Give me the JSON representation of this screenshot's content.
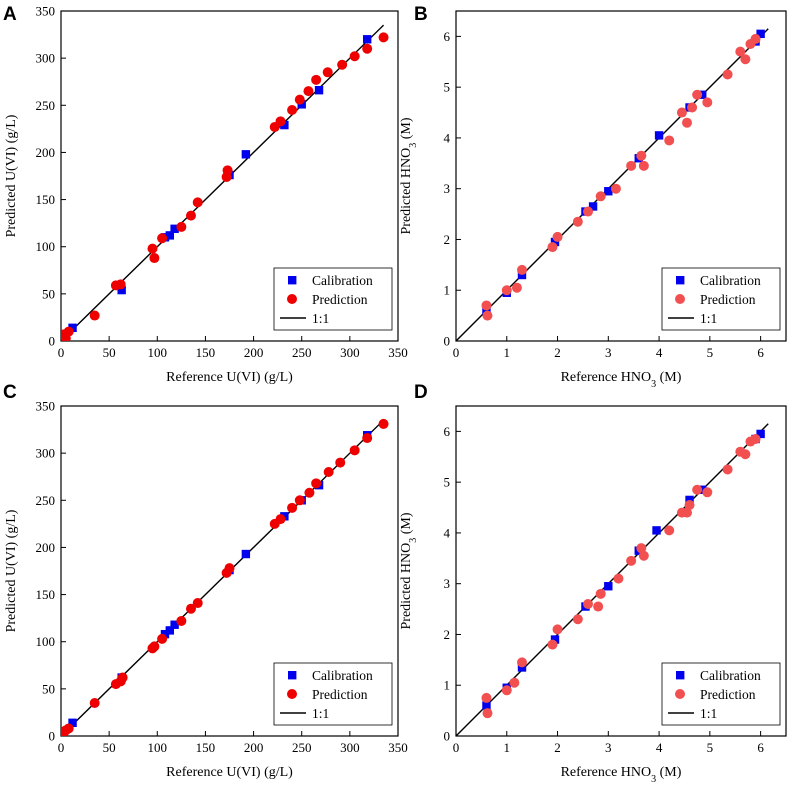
{
  "colors": {
    "calibration": "#0000ee",
    "prediction_AC": "#ee0000",
    "prediction_BD": "#f25050",
    "identity": "#000000"
  },
  "legend": {
    "calibration": "Calibration",
    "prediction": "Prediction",
    "identity": "1:1"
  },
  "chart_data": [
    {
      "panel": "A",
      "type": "scatter",
      "xlabel": "Reference U(VI) (g/L)",
      "ylabel": "Predicted U(VI) (g/L)",
      "xlim": [
        0,
        350
      ],
      "ylim": [
        0,
        350
      ],
      "xticks": [
        0,
        50,
        100,
        150,
        200,
        250,
        300,
        350
      ],
      "yticks": [
        0,
        50,
        100,
        150,
        200,
        250,
        300,
        350
      ],
      "legend_position": "bottom-right",
      "series": [
        {
          "name": "Calibration",
          "marker": "square",
          "x": [
            12,
            63,
            108,
            113,
            118,
            175,
            192,
            232,
            250,
            268,
            318
          ],
          "y": [
            14,
            54,
            110,
            112,
            119,
            176,
            198,
            229,
            251,
            266,
            320
          ]
        },
        {
          "name": "Prediction",
          "marker": "circle",
          "x": [
            3,
            5,
            8,
            35,
            57,
            62,
            95,
            97,
            105,
            125,
            135,
            142,
            172,
            173,
            222,
            228,
            240,
            248,
            257,
            265,
            277,
            292,
            305,
            318,
            335
          ],
          "y": [
            7,
            3,
            10,
            27,
            59,
            60,
            98,
            88,
            109,
            121,
            133,
            147,
            174,
            181,
            227,
            233,
            245,
            256,
            265,
            277,
            285,
            293,
            302,
            310,
            322
          ]
        },
        {
          "name": "1:1",
          "marker": "line",
          "x": [
            0,
            335
          ],
          "y": [
            0,
            335
          ]
        }
      ]
    },
    {
      "panel": "B",
      "type": "scatter",
      "xlabel": "Reference HNO3 (M)",
      "ylabel": "Predicted HNO3 (M)",
      "xlim": [
        0,
        6.5
      ],
      "ylim": [
        0,
        6.5
      ],
      "xticks": [
        0,
        1,
        2,
        3,
        4,
        5,
        6
      ],
      "yticks": [
        0,
        1,
        2,
        3,
        4,
        5,
        6
      ],
      "legend_position": "bottom-right",
      "series": [
        {
          "name": "Calibration",
          "marker": "square",
          "x": [
            0.6,
            1.0,
            1.3,
            1.95,
            2.55,
            2.7,
            3.0,
            3.6,
            4.0,
            4.6,
            4.85,
            5.9,
            6.0
          ],
          "y": [
            0.6,
            0.95,
            1.3,
            1.95,
            2.55,
            2.65,
            2.95,
            3.6,
            4.05,
            4.6,
            4.85,
            5.9,
            6.05
          ]
        },
        {
          "name": "Prediction",
          "marker": "circle",
          "x": [
            0.6,
            0.62,
            1.0,
            1.2,
            1.3,
            1.9,
            2.0,
            2.4,
            2.6,
            2.85,
            3.15,
            3.45,
            3.65,
            3.7,
            4.2,
            4.45,
            4.55,
            4.65,
            4.75,
            4.95,
            5.35,
            5.6,
            5.7,
            5.8,
            5.9
          ],
          "y": [
            0.7,
            0.5,
            1.0,
            1.05,
            1.4,
            1.85,
            2.05,
            2.35,
            2.55,
            2.85,
            3.0,
            3.45,
            3.65,
            3.45,
            3.95,
            4.5,
            4.3,
            4.6,
            4.85,
            4.7,
            5.25,
            5.7,
            5.55,
            5.85,
            5.95
          ]
        },
        {
          "name": "1:1",
          "marker": "line",
          "x": [
            0,
            6.15
          ],
          "y": [
            0,
            6.15
          ]
        }
      ]
    },
    {
      "panel": "C",
      "type": "scatter",
      "xlabel": "Reference U(VI) (g/L)",
      "ylabel": "Predicted U(VI) (g/L)",
      "xlim": [
        0,
        350
      ],
      "ylim": [
        0,
        350
      ],
      "xticks": [
        0,
        50,
        100,
        150,
        200,
        250,
        300,
        350
      ],
      "yticks": [
        0,
        50,
        100,
        150,
        200,
        250,
        300,
        350
      ],
      "legend_position": "bottom-right",
      "series": [
        {
          "name": "Calibration",
          "marker": "square",
          "x": [
            12,
            63,
            108,
            113,
            118,
            175,
            192,
            232,
            250,
            268,
            318
          ],
          "y": [
            14,
            62,
            108,
            112,
            118,
            176,
            193,
            233,
            250,
            266,
            319
          ]
        },
        {
          "name": "Prediction",
          "marker": "circle",
          "x": [
            3,
            5,
            8,
            35,
            57,
            62,
            64,
            95,
            97,
            105,
            125,
            135,
            142,
            172,
            175,
            222,
            228,
            240,
            248,
            258,
            265,
            278,
            290,
            305,
            318,
            335
          ],
          "y": [
            4,
            6,
            8,
            35,
            55,
            58,
            62,
            93,
            95,
            103,
            122,
            135,
            141,
            173,
            178,
            225,
            230,
            242,
            250,
            258,
            268,
            280,
            290,
            303,
            316,
            331
          ]
        },
        {
          "name": "1:1",
          "marker": "line",
          "x": [
            0,
            335
          ],
          "y": [
            0,
            335
          ]
        }
      ]
    },
    {
      "panel": "D",
      "type": "scatter",
      "xlabel": "Reference HNO3 (M)",
      "ylabel": "Predicted HNO3 (M)",
      "xlim": [
        0,
        6.5
      ],
      "ylim": [
        0,
        6.5
      ],
      "xticks": [
        0,
        1,
        2,
        3,
        4,
        5,
        6
      ],
      "yticks": [
        0,
        1,
        2,
        3,
        4,
        5,
        6
      ],
      "legend_position": "bottom-right",
      "series": [
        {
          "name": "Calibration",
          "marker": "square",
          "x": [
            0.6,
            1.0,
            1.3,
            1.95,
            2.55,
            3.0,
            3.6,
            3.95,
            4.6,
            4.85,
            5.9,
            6.0
          ],
          "y": [
            0.6,
            0.95,
            1.35,
            1.9,
            2.55,
            2.95,
            3.65,
            4.05,
            4.65,
            4.85,
            5.85,
            5.95
          ]
        },
        {
          "name": "Prediction",
          "marker": "circle",
          "x": [
            0.6,
            0.62,
            1.0,
            1.15,
            1.3,
            1.9,
            2.0,
            2.4,
            2.6,
            2.8,
            2.85,
            3.2,
            3.45,
            3.65,
            3.7,
            4.2,
            4.45,
            4.55,
            4.6,
            4.75,
            4.95,
            5.35,
            5.6,
            5.7,
            5.8,
            5.9
          ],
          "y": [
            0.75,
            0.45,
            0.9,
            1.05,
            1.45,
            1.8,
            2.1,
            2.3,
            2.6,
            2.55,
            2.8,
            3.1,
            3.45,
            3.7,
            3.55,
            4.05,
            4.4,
            4.4,
            4.55,
            4.85,
            4.8,
            5.25,
            5.6,
            5.55,
            5.8,
            5.85
          ]
        },
        {
          "name": "1:1",
          "marker": "line",
          "x": [
            0,
            6.15
          ],
          "y": [
            0,
            6.15
          ]
        }
      ]
    }
  ]
}
